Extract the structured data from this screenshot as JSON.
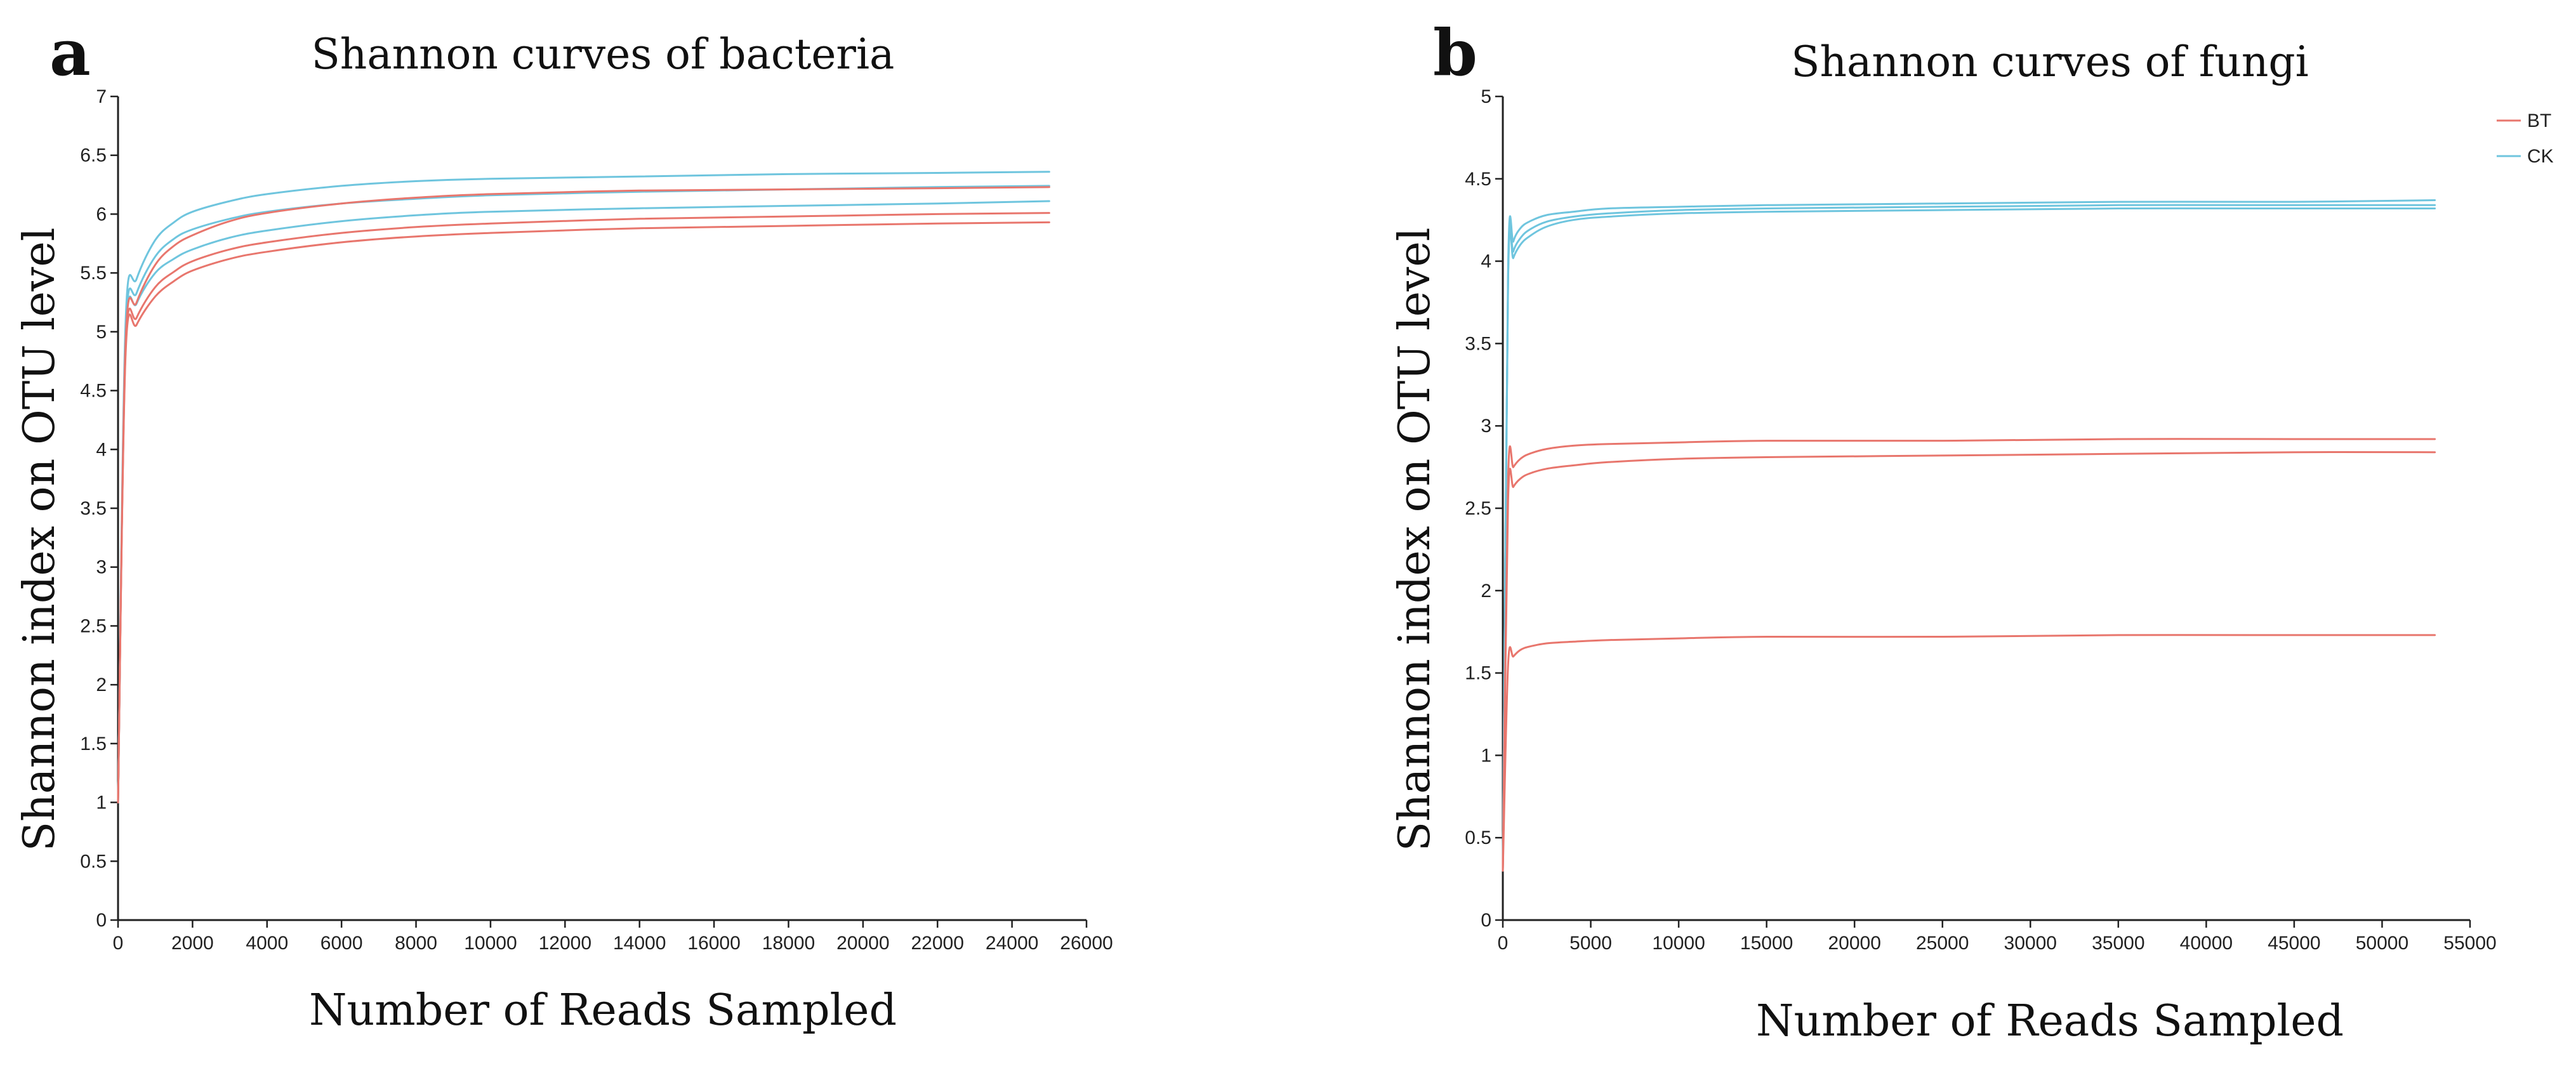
{
  "colors": {
    "BT": "#e8766d",
    "CK": "#6fc5de",
    "axis": "#222222"
  },
  "legend": {
    "placement": "top-right of panel b",
    "entries": [
      {
        "name": "BT",
        "color": "#e8766d"
      },
      {
        "name": "CK",
        "color": "#6fc5de"
      }
    ]
  },
  "chart_data": [
    {
      "panel": "a",
      "type": "line",
      "title": "Shannon curves of bacteria",
      "xlabel": "Number of Reads Sampled",
      "ylabel": "Shannon index on OTU level",
      "xlim": [
        0,
        26000
      ],
      "ylim": [
        0,
        7
      ],
      "xticks": [
        "0",
        "2000",
        "4000",
        "6000",
        "8000",
        "10000",
        "12000",
        "14000",
        "16000",
        "18000",
        "20000",
        "22000",
        "24000",
        "26000"
      ],
      "yticks": [
        "0",
        "0.5",
        "1",
        "1.5",
        "2",
        "2.5",
        "3",
        "3.5",
        "4",
        "4.5",
        "5",
        "5.5",
        "6",
        "6.5",
        "7"
      ],
      "series": [
        {
          "name": "CK",
          "x": [
            0,
            200,
            500,
            1000,
            1500,
            2000,
            3000,
            4000,
            6000,
            8000,
            10000,
            14000,
            18000,
            22000,
            25000
          ],
          "y": [
            1.0,
            5.05,
            5.45,
            5.78,
            5.93,
            6.02,
            6.11,
            6.17,
            6.24,
            6.28,
            6.3,
            6.32,
            6.34,
            6.35,
            6.36
          ]
        },
        {
          "name": "CK",
          "x": [
            0,
            200,
            500,
            1000,
            1500,
            2000,
            3000,
            4000,
            6000,
            8000,
            10000,
            14000,
            18000,
            22000,
            25000
          ],
          "y": [
            1.0,
            4.95,
            5.33,
            5.64,
            5.79,
            5.87,
            5.96,
            6.02,
            6.09,
            6.13,
            6.16,
            6.19,
            6.21,
            6.23,
            6.24
          ]
        },
        {
          "name": "CK",
          "x": [
            0,
            200,
            500,
            1000,
            1500,
            2000,
            3000,
            4000,
            6000,
            8000,
            10000,
            14000,
            18000,
            22000,
            25000
          ],
          "y": [
            1.0,
            4.9,
            5.24,
            5.5,
            5.62,
            5.7,
            5.8,
            5.86,
            5.94,
            5.99,
            6.02,
            6.05,
            6.07,
            6.09,
            6.11
          ]
        },
        {
          "name": "BT",
          "x": [
            0,
            200,
            500,
            1000,
            1500,
            2000,
            3000,
            4000,
            6000,
            8000,
            10000,
            14000,
            18000,
            22000,
            25000
          ],
          "y": [
            1.0,
            4.88,
            5.25,
            5.57,
            5.73,
            5.82,
            5.94,
            6.01,
            6.09,
            6.14,
            6.17,
            6.2,
            6.21,
            6.22,
            6.23
          ]
        },
        {
          "name": "BT",
          "x": [
            0,
            200,
            500,
            1000,
            1500,
            2000,
            3000,
            4000,
            6000,
            8000,
            10000,
            14000,
            18000,
            22000,
            25000
          ],
          "y": [
            1.0,
            4.82,
            5.12,
            5.38,
            5.51,
            5.6,
            5.7,
            5.76,
            5.84,
            5.89,
            5.92,
            5.96,
            5.98,
            6.0,
            6.01
          ]
        },
        {
          "name": "BT",
          "x": [
            0,
            200,
            500,
            1000,
            1500,
            2000,
            3000,
            4000,
            6000,
            8000,
            10000,
            14000,
            18000,
            22000,
            25000
          ],
          "y": [
            1.0,
            4.78,
            5.06,
            5.3,
            5.43,
            5.52,
            5.62,
            5.68,
            5.76,
            5.81,
            5.84,
            5.88,
            5.9,
            5.92,
            5.93
          ]
        }
      ]
    },
    {
      "panel": "b",
      "type": "line",
      "title": "Shannon curves of fungi",
      "xlabel": "Number of Reads Sampled",
      "ylabel": "Shannon index on OTU level",
      "xlim": [
        0,
        55000
      ],
      "ylim": [
        0,
        5
      ],
      "xticks": [
        "0",
        "5000",
        "10000",
        "15000",
        "20000",
        "25000",
        "30000",
        "35000",
        "40000",
        "45000",
        "50000",
        "55000"
      ],
      "yticks": [
        "0",
        "0.5",
        "1",
        "1.5",
        "2",
        "2.5",
        "3",
        "3.5",
        "4",
        "4.5",
        "5"
      ],
      "series": [
        {
          "name": "CK",
          "x": [
            0,
            300,
            600,
            1000,
            1500,
            2500,
            4000,
            6000,
            10000,
            15000,
            25000,
            35000,
            45000,
            53000
          ],
          "y": [
            0.3,
            3.95,
            4.12,
            4.2,
            4.24,
            4.28,
            4.3,
            4.32,
            4.33,
            4.34,
            4.35,
            4.36,
            4.36,
            4.37
          ]
        },
        {
          "name": "CK",
          "x": [
            0,
            300,
            600,
            1000,
            1500,
            2500,
            4000,
            6000,
            10000,
            15000,
            25000,
            35000,
            45000,
            53000
          ],
          "y": [
            0.3,
            3.9,
            4.06,
            4.14,
            4.19,
            4.24,
            4.27,
            4.29,
            4.31,
            4.32,
            4.33,
            4.34,
            4.34,
            4.34
          ]
        },
        {
          "name": "CK",
          "x": [
            0,
            300,
            600,
            1000,
            1500,
            2500,
            4000,
            6000,
            10000,
            15000,
            25000,
            35000,
            45000,
            53000
          ],
          "y": [
            0.3,
            3.88,
            4.02,
            4.1,
            4.15,
            4.21,
            4.25,
            4.27,
            4.29,
            4.3,
            4.31,
            4.32,
            4.32,
            4.32
          ]
        },
        {
          "name": "BT",
          "x": [
            0,
            300,
            600,
            1000,
            1500,
            2500,
            4000,
            6000,
            10000,
            15000,
            25000,
            35000,
            45000,
            53000
          ],
          "y": [
            0.3,
            2.68,
            2.75,
            2.8,
            2.83,
            2.86,
            2.88,
            2.89,
            2.9,
            2.91,
            2.91,
            2.92,
            2.92,
            2.92
          ]
        },
        {
          "name": "BT",
          "x": [
            0,
            300,
            600,
            1000,
            1500,
            2500,
            4000,
            6000,
            10000,
            15000,
            25000,
            35000,
            45000,
            53000
          ],
          "y": [
            0.3,
            2.55,
            2.63,
            2.68,
            2.71,
            2.74,
            2.76,
            2.78,
            2.8,
            2.81,
            2.82,
            2.83,
            2.84,
            2.84
          ]
        },
        {
          "name": "BT",
          "x": [
            0,
            300,
            600,
            1000,
            1500,
            2500,
            4000,
            6000,
            10000,
            15000,
            25000,
            35000,
            45000,
            53000
          ],
          "y": [
            0.3,
            1.55,
            1.6,
            1.64,
            1.66,
            1.68,
            1.69,
            1.7,
            1.71,
            1.72,
            1.72,
            1.73,
            1.73,
            1.73
          ]
        }
      ]
    }
  ]
}
